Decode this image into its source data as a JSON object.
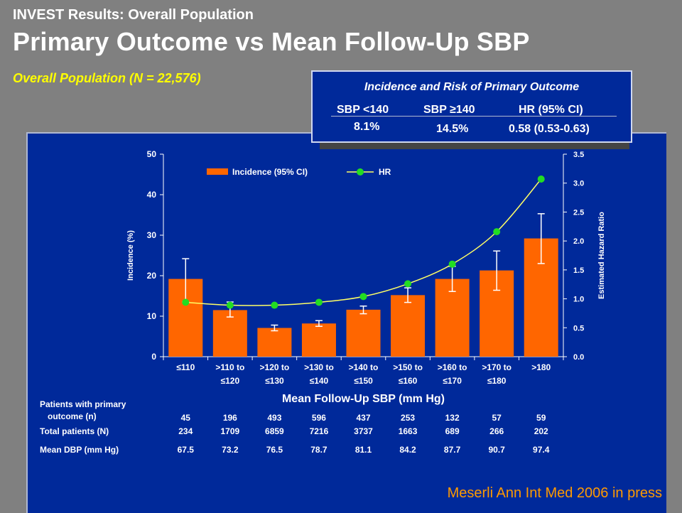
{
  "header": {
    "kicker": "INVEST Results: Overall Population",
    "title": "Primary Outcome vs Mean Follow-Up SBP",
    "subtitle": "Overall Population (N = 22,576)"
  },
  "infobox": {
    "title": "Incidence and Risk of Primary Outcome",
    "col1_head": "SBP <140",
    "col2_head": "SBP ≥140",
    "col3_head": "HR (95% CI)",
    "col1_val": "8.1%",
    "col2_val": "14.5%",
    "col3_val": "0.58 (0.53-0.63)"
  },
  "citation": "Meserli  Ann Int Med 2006 in press",
  "colors": {
    "bar": "#ff6600",
    "hr_line": "#ffff66",
    "hr_marker": "#22dd22",
    "panel": "#00299a",
    "text": "#ffffff"
  },
  "chart_data": {
    "type": "bar",
    "xlabel": "Mean Follow-Up SBP (mm Hg)",
    "ylabel": "Incidence (%)",
    "y2label": "Estimated Hazard Ratio",
    "ylim": [
      0,
      50
    ],
    "y2lim": [
      0,
      3.5
    ],
    "yticks": [
      "0",
      "10",
      "20",
      "30",
      "40",
      "50"
    ],
    "y2ticks": [
      "0.0",
      "0.5",
      "1.0",
      "1.5",
      "2.0",
      "2.5",
      "3.0",
      "3.5"
    ],
    "legend_position": "top-left",
    "categories": [
      [
        "≤110"
      ],
      [
        ">110 to",
        "≤120"
      ],
      [
        ">120 to",
        "≤130"
      ],
      [
        ">130 to",
        "≤140"
      ],
      [
        ">140 to",
        "≤150"
      ],
      [
        ">150 to",
        "≤160"
      ],
      [
        ">160 to",
        "≤170"
      ],
      [
        ">170 to",
        "≤180"
      ],
      [
        ">180"
      ]
    ],
    "series": [
      {
        "name": "Incidence  (95% CI)",
        "kind": "bar",
        "axis": "left",
        "values": [
          19.2,
          11.5,
          7.1,
          8.2,
          11.6,
          15.2,
          19.2,
          21.3,
          29.2
        ],
        "ci_low": [
          13.5,
          9.8,
          6.4,
          7.5,
          10.6,
          13.4,
          16.1,
          16.4,
          23.0
        ],
        "ci_high": [
          24.2,
          13.5,
          7.8,
          8.9,
          12.5,
          17.0,
          22.3,
          26.1,
          35.3
        ]
      },
      {
        "name": "HR",
        "kind": "line",
        "axis": "right",
        "values": [
          0.94,
          0.89,
          0.89,
          0.94,
          1.04,
          1.26,
          1.6,
          2.16,
          3.07
        ]
      }
    ]
  },
  "table": {
    "rows": [
      {
        "label": [
          "Patients with primary",
          "outcome (n)"
        ],
        "values": [
          "45",
          "196",
          "493",
          "596",
          "437",
          "253",
          "132",
          "57",
          "59"
        ]
      },
      {
        "label": [
          "Total patients (N)"
        ],
        "values": [
          "234",
          "1709",
          "6859",
          "7216",
          "3737",
          "1663",
          "689",
          "266",
          "202"
        ]
      },
      {
        "label": [
          "Mean DBP (mm Hg)"
        ],
        "values": [
          "67.5",
          "73.2",
          "76.5",
          "78.7",
          "81.1",
          "84.2",
          "87.7",
          "90.7",
          "97.4"
        ]
      }
    ]
  }
}
